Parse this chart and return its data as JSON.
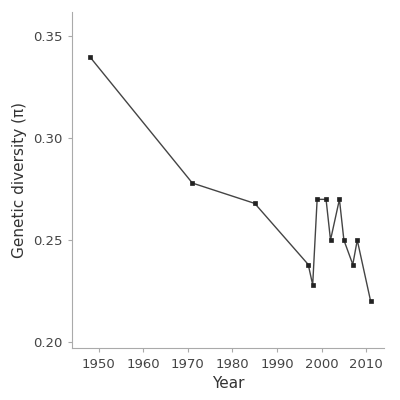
{
  "x": [
    1948,
    1971,
    1985,
    1997,
    1998,
    1999,
    2001,
    2002,
    2004,
    2005,
    2007,
    2008,
    2011
  ],
  "y": [
    0.34,
    0.278,
    0.268,
    0.238,
    0.228,
    0.27,
    0.27,
    0.25,
    0.27,
    0.25,
    0.238,
    0.25,
    0.22
  ],
  "xlabel": "Year",
  "ylabel": "Genetic diversity (π)",
  "xlim": [
    1944,
    2014
  ],
  "ylim": [
    0.197,
    0.362
  ],
  "xticks": [
    1950,
    1960,
    1970,
    1980,
    1990,
    2000,
    2010
  ],
  "yticks": [
    0.2,
    0.25,
    0.3,
    0.35
  ],
  "line_color": "#444444",
  "marker_color": "#222222",
  "bg_color": "#ffffff",
  "marker_size": 3.5,
  "line_width": 1.0
}
